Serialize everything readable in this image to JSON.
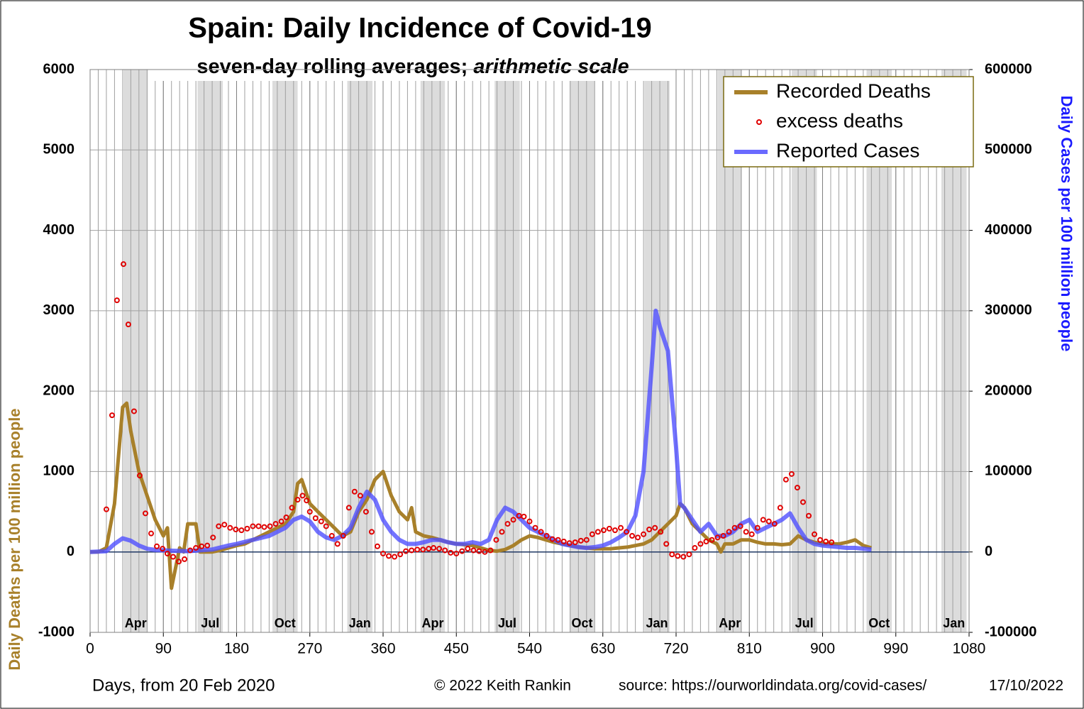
{
  "chart_data": {
    "type": "line",
    "title": "Spain: Daily Incidence of Covid-19",
    "subtitle": "seven-day rolling averages; ",
    "subtitle_italic": "arithmetic scale",
    "y_label": "Daily Deaths per 100 million people",
    "y2_label": "Daily Cases per 100 million people",
    "x_label": "Days,  from 20 Feb 2020",
    "credit": "© 2022  Keith Rankin",
    "source": "source: https://ourworldindata.org/covid-cases/",
    "date": "17/10/2022",
    "xlim": [
      0,
      1080
    ],
    "xticks": [
      0,
      90,
      180,
      270,
      360,
      450,
      540,
      630,
      720,
      810,
      900,
      990,
      1080
    ],
    "ylim": [
      -1000,
      6000
    ],
    "yticks": [
      -1000,
      0,
      1000,
      2000,
      3000,
      4000,
      5000,
      6000
    ],
    "y2lim": [
      -100000,
      600000
    ],
    "y2ticks": [
      -100000,
      0,
      100000,
      200000,
      300000,
      400000,
      500000,
      600000
    ],
    "grid": true,
    "legend": "upper right",
    "shaded_months": [
      {
        "label": "Apr",
        "start": 41,
        "end": 71
      },
      {
        "label": "Jul",
        "start": 132,
        "end": 163
      },
      {
        "label": "Oct",
        "start": 224,
        "end": 255
      },
      {
        "label": "Jan",
        "start": 316,
        "end": 347
      },
      {
        "label": "Apr",
        "start": 406,
        "end": 436
      },
      {
        "label": "Jul",
        "start": 497,
        "end": 528
      },
      {
        "label": "Oct",
        "start": 589,
        "end": 620
      },
      {
        "label": "Jan",
        "start": 681,
        "end": 712
      },
      {
        "label": "Apr",
        "start": 771,
        "end": 801
      },
      {
        "label": "Jul",
        "start": 862,
        "end": 893
      },
      {
        "label": "Oct",
        "start": 954,
        "end": 985
      },
      {
        "label": "Jan",
        "start": 1046,
        "end": 1077
      }
    ],
    "series": [
      {
        "name": "Recorded Deaths",
        "color": "#a8802a",
        "style": "line",
        "x": [
          0,
          10,
          20,
          30,
          40,
          45,
          50,
          60,
          70,
          80,
          90,
          95,
          100,
          110,
          115,
          120,
          130,
          135,
          140,
          150,
          160,
          170,
          180,
          190,
          200,
          210,
          220,
          230,
          240,
          250,
          255,
          260,
          270,
          280,
          290,
          300,
          310,
          320,
          330,
          340,
          350,
          360,
          370,
          380,
          390,
          395,
          400,
          410,
          420,
          430,
          440,
          450,
          460,
          470,
          480,
          490,
          500,
          510,
          520,
          530,
          540,
          550,
          560,
          570,
          580,
          590,
          600,
          610,
          620,
          630,
          640,
          650,
          660,
          670,
          680,
          690,
          700,
          710,
          720,
          725,
          730,
          740,
          750,
          760,
          770,
          775,
          780,
          790,
          800,
          810,
          820,
          830,
          840,
          850,
          860,
          870,
          880,
          890,
          900,
          910,
          920,
          930,
          940,
          950,
          960
        ],
        "values": [
          0,
          0,
          50,
          600,
          1800,
          1850,
          1500,
          1000,
          700,
          400,
          200,
          300,
          -450,
          50,
          0,
          350,
          350,
          0,
          0,
          0,
          20,
          50,
          80,
          100,
          150,
          200,
          250,
          300,
          350,
          500,
          850,
          900,
          600,
          500,
          400,
          300,
          200,
          250,
          500,
          650,
          900,
          1000,
          700,
          500,
          400,
          550,
          250,
          200,
          180,
          150,
          120,
          100,
          90,
          80,
          50,
          20,
          10,
          30,
          80,
          150,
          200,
          180,
          150,
          120,
          100,
          80,
          60,
          50,
          40,
          40,
          40,
          50,
          60,
          80,
          100,
          150,
          250,
          350,
          450,
          600,
          550,
          350,
          250,
          150,
          100,
          0,
          100,
          100,
          150,
          150,
          120,
          100,
          100,
          90,
          100,
          200,
          150,
          120,
          100,
          100,
          100,
          120,
          150,
          80,
          50
        ]
      },
      {
        "name": "excess deaths",
        "color": "#e00000",
        "style": "points",
        "x": [
          20,
          27,
          33,
          41,
          47,
          54,
          61,
          68,
          75,
          82,
          89,
          95,
          102,
          109,
          116,
          123,
          130,
          137,
          144,
          151,
          158,
          165,
          172,
          179,
          186,
          193,
          200,
          207,
          214,
          221,
          228,
          235,
          241,
          248,
          255,
          261,
          266,
          270,
          277,
          284,
          290,
          297,
          304,
          311,
          318,
          325,
          332,
          339,
          346,
          353,
          360,
          367,
          374,
          381,
          388,
          395,
          402,
          409,
          416,
          422,
          429,
          436,
          443,
          450,
          457,
          464,
          471,
          478,
          485,
          492,
          499,
          506,
          513,
          520,
          527,
          533,
          540,
          547,
          554,
          561,
          568,
          575,
          582,
          589,
          596,
          603,
          610,
          617,
          624,
          631,
          638,
          645,
          652,
          659,
          666,
          673,
          680,
          687,
          694,
          701,
          708,
          715,
          722,
          729,
          736,
          743,
          750,
          757,
          764,
          771,
          778,
          785,
          792,
          799,
          806,
          813,
          820,
          827,
          834,
          841,
          848,
          855,
          862,
          869,
          876,
          883,
          890,
          897,
          904,
          911
        ],
        "values": [
          530,
          1700,
          3130,
          3580,
          2830,
          1750,
          950,
          480,
          230,
          70,
          40,
          -20,
          -60,
          -120,
          -90,
          20,
          50,
          70,
          80,
          180,
          320,
          340,
          300,
          280,
          270,
          290,
          320,
          320,
          310,
          320,
          350,
          380,
          430,
          550,
          650,
          700,
          640,
          500,
          420,
          380,
          320,
          200,
          100,
          200,
          550,
          750,
          700,
          500,
          250,
          70,
          -20,
          -50,
          -60,
          -30,
          10,
          20,
          30,
          30,
          40,
          50,
          40,
          20,
          -10,
          -20,
          10,
          40,
          20,
          10,
          0,
          20,
          150,
          250,
          350,
          400,
          450,
          440,
          380,
          300,
          250,
          200,
          160,
          150,
          130,
          110,
          120,
          140,
          150,
          220,
          250,
          270,
          290,
          270,
          300,
          250,
          200,
          180,
          220,
          280,
          300,
          250,
          100,
          -30,
          -50,
          -60,
          -30,
          50,
          100,
          130,
          150,
          180,
          200,
          250,
          300,
          320,
          250,
          220,
          300,
          400,
          380,
          350,
          550,
          900,
          970,
          800,
          620,
          450,
          220,
          150,
          130,
          120
        ]
      },
      {
        "name": "Reported Cases",
        "color": "#5050ff",
        "style": "line",
        "axis": "y2",
        "x": [
          0,
          20,
          30,
          40,
          50,
          60,
          70,
          80,
          100,
          120,
          150,
          170,
          180,
          200,
          220,
          240,
          250,
          260,
          270,
          280,
          290,
          300,
          310,
          320,
          330,
          340,
          350,
          360,
          370,
          380,
          390,
          400,
          410,
          420,
          430,
          440,
          450,
          460,
          470,
          480,
          490,
          500,
          510,
          520,
          530,
          540,
          550,
          560,
          570,
          580,
          590,
          600,
          610,
          620,
          630,
          640,
          650,
          660,
          670,
          680,
          690,
          695,
          700,
          710,
          720,
          725,
          730,
          740,
          750,
          760,
          770,
          780,
          790,
          800,
          810,
          820,
          830,
          840,
          850,
          860,
          870,
          880,
          890,
          900,
          910,
          920,
          930,
          940,
          950,
          960
        ],
        "values": [
          0,
          1000,
          10000,
          17000,
          14000,
          8000,
          4000,
          2500,
          1500,
          1000,
          3000,
          8000,
          10000,
          15000,
          20000,
          30000,
          40000,
          44000,
          38000,
          25000,
          18000,
          15000,
          20000,
          30000,
          55000,
          75000,
          65000,
          40000,
          25000,
          15000,
          10000,
          10000,
          12000,
          15000,
          15000,
          12000,
          10000,
          10000,
          12000,
          10000,
          15000,
          40000,
          55000,
          50000,
          40000,
          30000,
          25000,
          20000,
          15000,
          10000,
          8000,
          6000,
          5000,
          6000,
          8000,
          12000,
          18000,
          25000,
          45000,
          100000,
          230000,
          300000,
          280000,
          250000,
          130000,
          60000,
          55000,
          40000,
          25000,
          35000,
          20000,
          20000,
          25000,
          35000,
          40000,
          25000,
          30000,
          35000,
          40000,
          48000,
          30000,
          15000,
          10000,
          8000,
          7000,
          6000,
          5000,
          5000,
          4000,
          3000
        ]
      }
    ]
  }
}
